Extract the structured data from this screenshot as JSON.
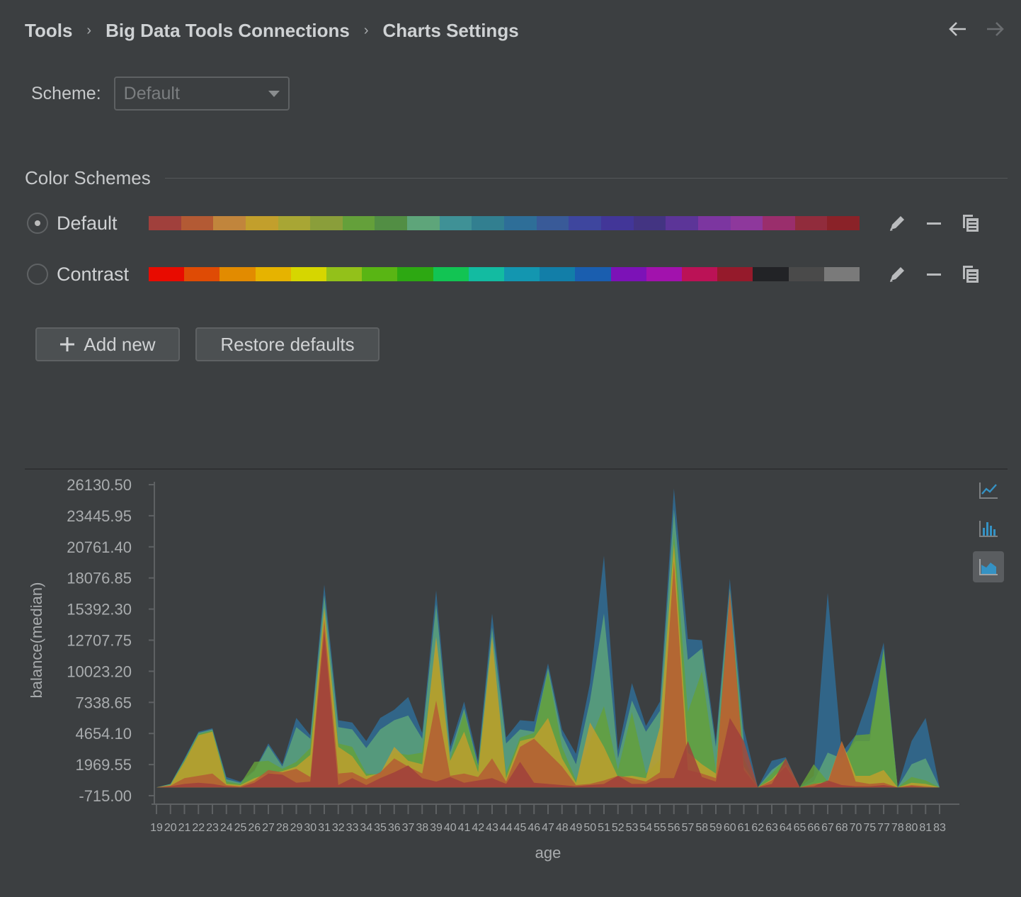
{
  "breadcrumb": [
    "Tools",
    "Big Data Tools Connections",
    "Charts Settings"
  ],
  "nav": {
    "back_icon": "arrow-left-icon",
    "forward_icon": "arrow-right-icon"
  },
  "scheme": {
    "label": "Scheme:",
    "value": "Default"
  },
  "color_schemes": {
    "title": "Color Schemes",
    "items": [
      {
        "name": "Default",
        "selected": true,
        "colors": [
          "#a0403c",
          "#b35a34",
          "#c1853c",
          "#c29f2c",
          "#a8a634",
          "#8a9e3a",
          "#64a03a",
          "#528e44",
          "#5ea57a",
          "#3f9196",
          "#327f90",
          "#2e6e98",
          "#395a98",
          "#3e469e",
          "#423698",
          "#433482",
          "#5c3598",
          "#7c36a0",
          "#8e389c",
          "#9a2e6c",
          "#912c3c",
          "#8a2228"
        ]
      },
      {
        "name": "Contrast",
        "selected": false,
        "colors": [
          "#e80b00",
          "#df4b05",
          "#e28b00",
          "#e6b300",
          "#d6d600",
          "#93c11a",
          "#59b514",
          "#2da812",
          "#12c453",
          "#13bba1",
          "#1396b0",
          "#127ea8",
          "#1a5eaf",
          "#7c12b7",
          "#a212ad",
          "#bb1256",
          "#951a2b",
          "#222326",
          "#4a4a4a",
          "#7a7a7a"
        ]
      }
    ],
    "action_icons": [
      "pencil-icon",
      "minus-icon",
      "copy-icon"
    ]
  },
  "buttons": {
    "add_new": "Add new",
    "restore_defaults": "Restore defaults"
  },
  "chart_tools": [
    "line-chart-icon",
    "bar-chart-icon",
    "area-chart-icon"
  ],
  "chart_data": {
    "type": "area",
    "title": "",
    "xlabel": "age",
    "ylabel": "balance(median)",
    "yticks": [
      "26130.50",
      "23445.95",
      "20761.40",
      "18076.85",
      "15392.30",
      "12707.75",
      "10023.20",
      "7338.65",
      "4654.10",
      "1969.55",
      "-715.00"
    ],
    "ylim": [
      -715,
      26130.5
    ],
    "x": [
      19,
      20,
      21,
      22,
      23,
      24,
      25,
      26,
      27,
      28,
      29,
      30,
      31,
      32,
      33,
      34,
      35,
      36,
      37,
      38,
      39,
      40,
      41,
      42,
      43,
      44,
      45,
      46,
      47,
      48,
      49,
      50,
      51,
      52,
      53,
      54,
      55,
      56,
      57,
      58,
      59,
      60,
      61,
      62,
      63,
      64,
      65,
      66,
      67,
      68,
      70,
      75,
      77,
      78,
      80,
      81,
      83
    ],
    "series": [
      {
        "color": "#2e6e98",
        "values": [
          0,
          300,
          2500,
          4800,
          5100,
          900,
          500,
          1500,
          3800,
          2000,
          6000,
          4500,
          17500,
          5800,
          5600,
          4000,
          6000,
          6700,
          7800,
          4700,
          17000,
          3500,
          7400,
          2300,
          15000,
          4300,
          5800,
          5700,
          10700,
          5000,
          2900,
          9000,
          20000,
          3200,
          9000,
          5300,
          7400,
          25800,
          12800,
          12700,
          4000,
          18000,
          5100,
          0,
          2300,
          2600,
          0,
          1000,
          16800,
          3000,
          4500,
          8000,
          12500,
          0,
          4000,
          6000,
          0
        ]
      },
      {
        "color": "#5ea57a",
        "values": [
          0,
          300,
          2400,
          4700,
          5000,
          700,
          400,
          1400,
          3600,
          1800,
          5200,
          4200,
          16600,
          5200,
          5000,
          3400,
          5000,
          5800,
          6200,
          4200,
          15800,
          3000,
          6800,
          1900,
          13800,
          3800,
          5000,
          4800,
          10300,
          4500,
          2000,
          7500,
          15000,
          2500,
          7500,
          4800,
          6600,
          24000,
          11000,
          12000,
          3500,
          17200,
          4000,
          0,
          1500,
          2400,
          0,
          500,
          3000,
          2500,
          4000,
          4000,
          12000,
          0,
          2000,
          2500,
          0
        ]
      },
      {
        "color": "#64a03a",
        "values": [
          0,
          200,
          2300,
          4600,
          4900,
          500,
          300,
          2200,
          2300,
          1600,
          2200,
          3400,
          15000,
          3800,
          3500,
          1200,
          1100,
          3000,
          2800,
          3000,
          12000,
          2400,
          6500,
          1800,
          11800,
          1200,
          4300,
          4700,
          10000,
          3500,
          600,
          4000,
          7000,
          1500,
          6500,
          1200,
          2400,
          22000,
          6500,
          10000,
          1500,
          16500,
          2500,
          0,
          1200,
          2500,
          0,
          2000,
          500,
          2000,
          4500,
          4600,
          11800,
          0,
          900,
          600,
          0
        ]
      },
      {
        "color": "#c29f2c",
        "values": [
          0,
          200,
          2200,
          4500,
          4800,
          300,
          200,
          800,
          1200,
          1400,
          1800,
          2800,
          15500,
          3500,
          2700,
          1000,
          1200,
          3500,
          2300,
          2000,
          13000,
          2300,
          4800,
          1300,
          13000,
          800,
          4000,
          4300,
          6000,
          2500,
          400,
          5600,
          3500,
          900,
          1000,
          800,
          5200,
          21000,
          3000,
          2000,
          1200,
          16000,
          1800,
          0,
          700,
          2000,
          0,
          300,
          500,
          4000,
          1000,
          1000,
          1500,
          0,
          400,
          300,
          0
        ]
      },
      {
        "color": "#b35a34",
        "values": [
          0,
          150,
          800,
          1000,
          1200,
          200,
          100,
          600,
          1500,
          1300,
          1600,
          900,
          14500,
          1200,
          1300,
          700,
          1300,
          2500,
          1800,
          1200,
          7500,
          1000,
          1200,
          900,
          2500,
          500,
          3500,
          4200,
          3000,
          1800,
          200,
          300,
          600,
          1000,
          800,
          500,
          1300,
          19500,
          1500,
          1200,
          800,
          17000,
          1500,
          0,
          600,
          1800,
          0,
          300,
          400,
          4000,
          500,
          300,
          400,
          0,
          200,
          100,
          0
        ]
      },
      {
        "color": "#a0403c",
        "values": [
          0,
          100,
          300,
          400,
          300,
          100,
          0,
          400,
          1200,
          1100,
          400,
          500,
          13500,
          200,
          800,
          200,
          800,
          1300,
          1900,
          800,
          500,
          900,
          400,
          600,
          800,
          300,
          2200,
          400,
          300,
          200,
          100,
          200,
          300,
          1000,
          300,
          300,
          800,
          800,
          4000,
          900,
          500,
          6000,
          4000,
          0,
          300,
          2500,
          0,
          100,
          600,
          200,
          100,
          100,
          200,
          0,
          100,
          0,
          0
        ]
      }
    ]
  }
}
